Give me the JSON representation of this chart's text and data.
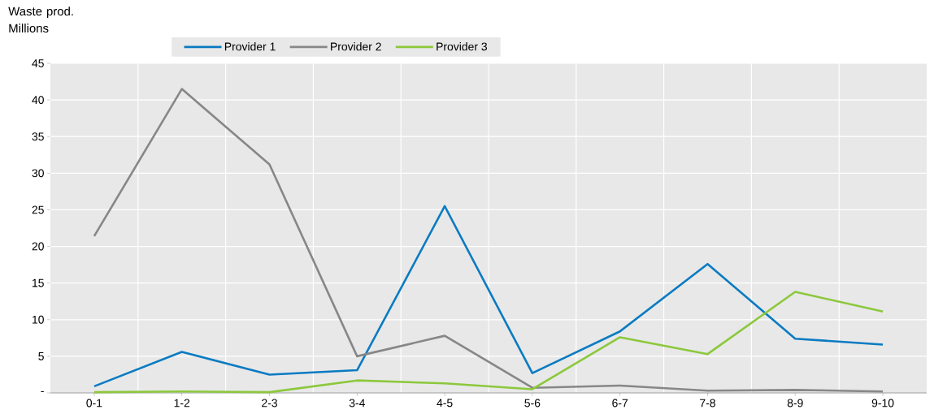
{
  "chart_data": {
    "type": "line",
    "ylabel": "Waste prod. Millions",
    "categories": [
      "0-1",
      "1-2",
      "2-3",
      "3-4",
      "4-5",
      "5-6",
      "6-7",
      "7-8",
      "8-9",
      "9-10"
    ],
    "series": [
      {
        "name": "Provider 1",
        "color": "#0a7bc2",
        "values": [
          0.9,
          5.6,
          2.5,
          3.1,
          25.5,
          2.7,
          8.4,
          17.6,
          7.4,
          6.6
        ]
      },
      {
        "name": "Provider 2",
        "color": "#878787",
        "values": [
          21.4,
          41.5,
          31.2,
          5.0,
          7.8,
          0.7,
          1.0,
          0.3,
          0.4,
          0.2
        ]
      },
      {
        "name": "Provider 3",
        "color": "#8cc83c",
        "values": [
          0.1,
          0.2,
          0.1,
          1.7,
          1.3,
          0.5,
          7.6,
          5.3,
          13.8,
          11.1
        ]
      }
    ],
    "ylim": [
      0,
      45
    ],
    "yticks": [
      {
        "value": 0,
        "label": "-"
      },
      5,
      10,
      15,
      20,
      25,
      30,
      35,
      40,
      45
    ],
    "grid": true,
    "legend": "top",
    "marker": "none",
    "line_style": "solid"
  }
}
